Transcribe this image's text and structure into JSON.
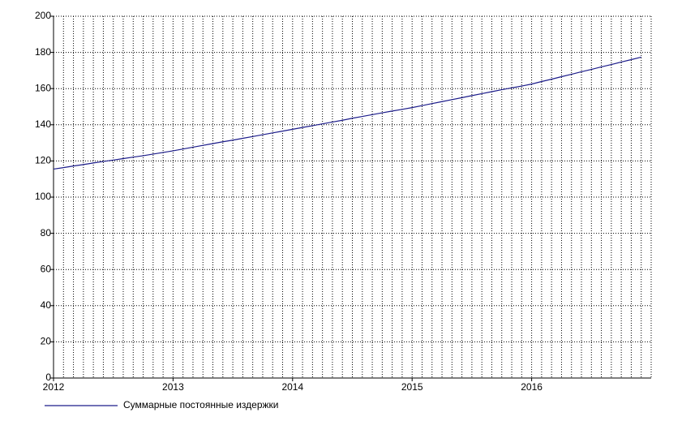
{
  "chart_data": {
    "type": "line",
    "x": [
      2012,
      2012.0833,
      2012.1667,
      2012.25,
      2012.3333,
      2012.4167,
      2012.5,
      2012.5833,
      2012.6667,
      2012.75,
      2012.8333,
      2012.9167,
      2013,
      2013.0833,
      2013.1667,
      2013.25,
      2013.3333,
      2013.4167,
      2013.5,
      2013.5833,
      2013.6667,
      2013.75,
      2013.8333,
      2013.9167,
      2014,
      2014.0833,
      2014.1667,
      2014.25,
      2014.3333,
      2014.4167,
      2014.5,
      2014.5833,
      2014.6667,
      2014.75,
      2014.8333,
      2014.9167,
      2015,
      2015.0833,
      2015.1667,
      2015.25,
      2015.3333,
      2015.4167,
      2015.5,
      2015.5833,
      2015.6667,
      2015.75,
      2015.8333,
      2015.9167,
      2016,
      2016.0833,
      2016.1667,
      2016.25,
      2016.3333,
      2016.4167,
      2016.5,
      2016.5833,
      2016.6667,
      2016.75,
      2016.8333,
      2016.9167
    ],
    "series": [
      {
        "name": "Суммарные постоянные издержки",
        "color": "#1c1c8a",
        "values": [
          115.5,
          116.3,
          117.2,
          118.0,
          118.9,
          119.7,
          120.5,
          121.3,
          122.1,
          122.9,
          123.8,
          124.7,
          125.6,
          126.6,
          127.6,
          128.6,
          129.6,
          130.6,
          131.5,
          132.5,
          133.5,
          134.5,
          135.5,
          136.5,
          137.5,
          138.5,
          139.5,
          140.5,
          141.5,
          142.5,
          143.6,
          144.6,
          145.6,
          146.6,
          147.6,
          148.5,
          149.5,
          150.6,
          151.7,
          152.8,
          153.9,
          155.0,
          156.1,
          157.2,
          158.3,
          159.4,
          160.4,
          161.4,
          162.5,
          163.9,
          165.2,
          166.6,
          167.9,
          169.3,
          170.6,
          172.0,
          173.3,
          174.7,
          176.0,
          177.4
        ]
      }
    ],
    "xlim": [
      2012,
      2017
    ],
    "xticks": [
      2012,
      2013,
      2014,
      2015,
      2016
    ],
    "ylim": [
      0,
      200
    ],
    "yticks": [
      0,
      20,
      40,
      60,
      80,
      100,
      120,
      140,
      160,
      180,
      200
    ],
    "grid": true,
    "legend": "bottom-left"
  }
}
